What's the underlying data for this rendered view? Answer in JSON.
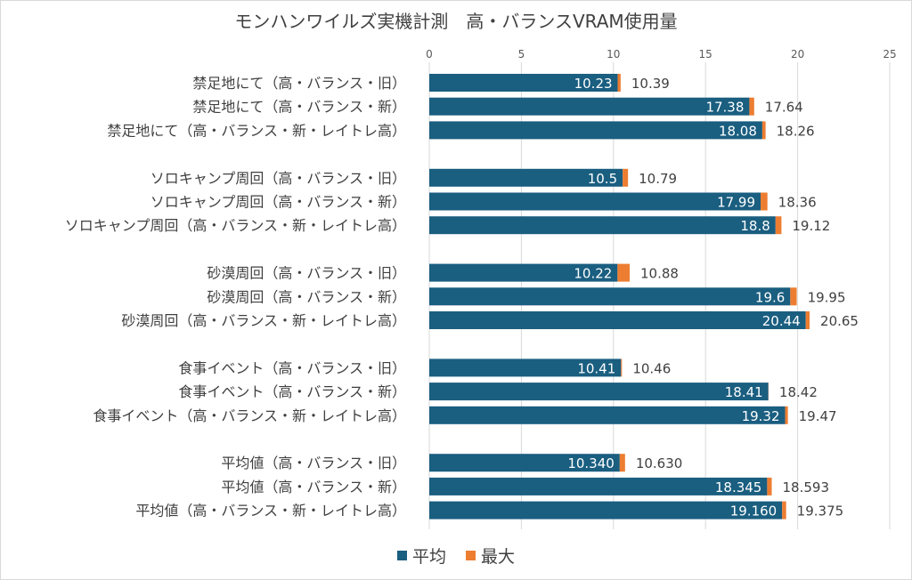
{
  "chart_data": {
    "type": "bar",
    "orientation": "horizontal",
    "title": "モンハンワイルズ実機計測　高・バランスVRAM使用量",
    "xlim": [
      0,
      25
    ],
    "xticks": [
      0,
      5,
      10,
      15,
      20,
      25
    ],
    "grid": true,
    "legend_position": "bottom",
    "colors": {
      "avg": "#1a5e80",
      "max": "#ed7d31"
    },
    "categories": [
      "禁足地にて（高・バランス・旧）",
      "禁足地にて（高・バランス・新）",
      "禁足地にて（高・バランス・新・レイトレ高）",
      "ソロキャンプ周回（高・バランス・旧）",
      "ソロキャンプ周回（高・バランス・新）",
      "ソロキャンプ周回（高・バランス・新・レイトレ高）",
      "砂漠周回（高・バランス・旧）",
      "砂漠周回（高・バランス・新）",
      "砂漠周回（高・バランス・新・レイトレ高）",
      "食事イベント（高・バランス・旧）",
      "食事イベント（高・バランス・新）",
      "食事イベント（高・バランス・新・レイトレ高）",
      "平均値（高・バランス・旧）",
      "平均値（高・バランス・新）",
      "平均値（高・バランス・新・レイトレ高）"
    ],
    "series": [
      {
        "name": "平均",
        "values": [
          10.23,
          17.38,
          18.08,
          10.5,
          17.99,
          18.8,
          10.22,
          19.6,
          20.44,
          10.41,
          18.41,
          19.32,
          10.34,
          18.345,
          19.16
        ],
        "labels": [
          "10.23",
          "17.38",
          "18.08",
          "10.5",
          "17.99",
          "18.8",
          "10.22",
          "19.6",
          "20.44",
          "10.41",
          "18.41",
          "19.32",
          "10.340",
          "18.345",
          "19.160"
        ]
      },
      {
        "name": "最大",
        "values": [
          10.39,
          17.64,
          18.26,
          10.79,
          18.36,
          19.12,
          10.88,
          19.95,
          20.65,
          10.46,
          18.42,
          19.47,
          10.63,
          18.593,
          19.375
        ],
        "labels": [
          "10.39",
          "17.64",
          "18.26",
          "10.79",
          "18.36",
          "19.12",
          "10.88",
          "19.95",
          "20.65",
          "10.46",
          "18.42",
          "19.47",
          "10.630",
          "18.593",
          "19.375"
        ]
      }
    ]
  }
}
